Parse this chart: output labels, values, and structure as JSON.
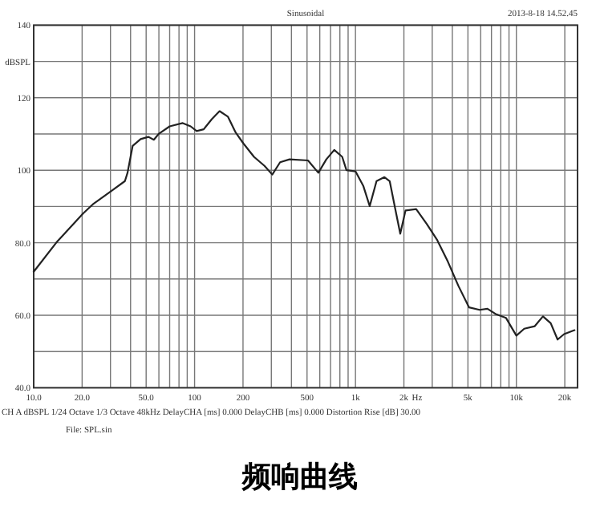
{
  "chart_data": {
    "type": "line",
    "title": "频响曲线",
    "subtitle": "Sinusoidal",
    "xlabel": "Hz",
    "ylabel": "dBSPL",
    "annotations": [
      "2013-8-18 14.52.45",
      "CH A   dBSPL   1/24 Octave   1/3 Octave   48kHz   DelayCHA [ms] 0.000   DelayCHB [ms] 0.000   Distortion Rise [dB] 30.00",
      "File: SPL.sin"
    ],
    "log": "x",
    "grid": true,
    "marker": "none",
    "line_style": "solid",
    "xlim": [
      10,
      24000
    ],
    "ylim": [
      40,
      140
    ],
    "xticks": [
      {
        "value": 10,
        "label": "10.0"
      },
      {
        "value": 20,
        "label": "20.0"
      },
      {
        "value": 30,
        "label": null
      },
      {
        "value": 40,
        "label": null
      },
      {
        "value": 50,
        "label": "50.0"
      },
      {
        "value": 60,
        "label": null
      },
      {
        "value": 70,
        "label": null
      },
      {
        "value": 80,
        "label": null
      },
      {
        "value": 90,
        "label": null
      },
      {
        "value": 100,
        "label": "100"
      },
      {
        "value": 200,
        "label": "200"
      },
      {
        "value": 300,
        "label": null
      },
      {
        "value": 400,
        "label": null
      },
      {
        "value": 500,
        "label": "500"
      },
      {
        "value": 600,
        "label": null
      },
      {
        "value": 700,
        "label": null
      },
      {
        "value": 800,
        "label": null
      },
      {
        "value": 900,
        "label": null
      },
      {
        "value": 1000,
        "label": "1k"
      },
      {
        "value": 2000,
        "label": "2k"
      },
      {
        "value": 3000,
        "label": null
      },
      {
        "value": 4000,
        "label": null
      },
      {
        "value": 5000,
        "label": "5k"
      },
      {
        "value": 6000,
        "label": null
      },
      {
        "value": 7000,
        "label": null
      },
      {
        "value": 8000,
        "label": null
      },
      {
        "value": 9000,
        "label": null
      },
      {
        "value": 10000,
        "label": "10k"
      },
      {
        "value": 20000,
        "label": "20k"
      }
    ],
    "yticks": [
      {
        "value": 40,
        "label": "40.0"
      },
      {
        "value": 50,
        "label": null
      },
      {
        "value": 60,
        "label": "60.0"
      },
      {
        "value": 70,
        "label": null
      },
      {
        "value": 80,
        "label": "80.0"
      },
      {
        "value": 90,
        "label": null
      },
      100,
      {
        "value": 110,
        "label": null
      },
      120,
      {
        "value": 130,
        "label": null
      },
      140
    ],
    "series": [
      {
        "color": "#222222",
        "x": [
          10,
          13.8,
          20.3,
          23.6,
          30.6,
          36.9,
          38.3,
          41.2,
          46.2,
          51.7,
          55.8,
          60.1,
          70,
          84.4,
          94.5,
          103,
          114,
          128,
          143,
          161,
          180,
          201,
          234,
          272,
          304,
          340,
          389,
          507,
          588,
          659,
          738,
          827,
          879,
          1000,
          1120,
          1226,
          1352,
          1514,
          1632,
          1762,
          1898,
          2047,
          2383,
          2772,
          3224,
          3750,
          4363,
          5076,
          5905,
          6610,
          7400,
          8609,
          10000,
          11196,
          13020,
          14630,
          16350,
          18040,
          19800,
          22990
        ],
        "values": [
          72,
          80,
          88.1,
          90.8,
          94.4,
          97,
          99.3,
          106.7,
          108.6,
          109.2,
          108.4,
          110.1,
          112.1,
          113,
          112.1,
          110.8,
          111.3,
          114.1,
          116.3,
          114.8,
          110.4,
          107.4,
          103.7,
          101.2,
          98.8,
          102.2,
          103,
          102.7,
          99.3,
          103,
          105.6,
          103.7,
          100,
          99.7,
          95.6,
          90.1,
          97,
          98.1,
          97,
          89.6,
          82.5,
          88.9,
          89.3,
          85.2,
          80.7,
          74.8,
          68.1,
          62.2,
          61.5,
          61.8,
          60.4,
          59.3,
          54.4,
          56.3,
          57,
          59.7,
          57.8,
          53.3,
          54.8,
          55.9
        ]
      }
    ]
  }
}
